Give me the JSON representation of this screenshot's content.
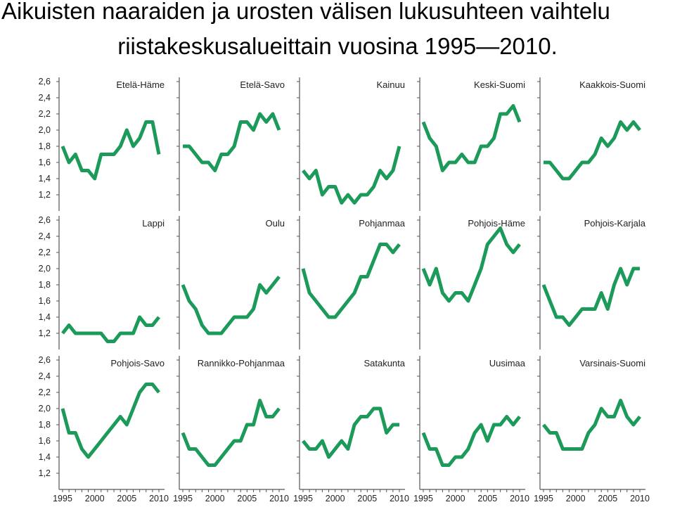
{
  "title_line1": "Aikuisten naaraiden ja urosten välisen lukusuhteen vaihtelu",
  "title_line2": "riistakeskusalueittain vuosina 1995—2010.",
  "colors": {
    "line": "#1b9a5a",
    "axis": "#555555"
  },
  "chart_data": {
    "type": "line",
    "x": [
      1995,
      1996,
      1997,
      1998,
      1999,
      2000,
      2001,
      2002,
      2003,
      2004,
      2005,
      2006,
      2007,
      2008,
      2009,
      2010
    ],
    "x_ticks": [
      "1995",
      "2000",
      "2005",
      "2010"
    ],
    "y_ticks": [
      "2,6",
      "2,4",
      "2,2",
      "2,0",
      "1,8",
      "1,6",
      "1,4",
      "1,2"
    ],
    "ylim": [
      1.1,
      2.7
    ],
    "xlim": [
      1995,
      2010
    ],
    "grid": false,
    "panels": [
      {
        "name": "Etelä-Häme",
        "values": [
          1.8,
          1.6,
          1.7,
          1.5,
          1.5,
          1.4,
          1.7,
          1.7,
          1.7,
          1.8,
          2.0,
          1.8,
          1.9,
          2.1,
          2.1,
          1.7
        ]
      },
      {
        "name": "Etelä-Savo",
        "values": [
          1.8,
          1.8,
          1.7,
          1.6,
          1.6,
          1.5,
          1.7,
          1.7,
          1.8,
          2.1,
          2.1,
          2.0,
          2.2,
          2.1,
          2.2,
          2.0
        ]
      },
      {
        "name": "Kainuu",
        "values": [
          1.5,
          1.4,
          1.5,
          1.2,
          1.3,
          1.3,
          1.1,
          1.2,
          1.1,
          1.2,
          1.2,
          1.3,
          1.5,
          1.4,
          1.5,
          1.8
        ]
      },
      {
        "name": "Keski-Suomi",
        "values": [
          2.1,
          1.9,
          1.8,
          1.5,
          1.6,
          1.6,
          1.7,
          1.6,
          1.6,
          1.8,
          1.8,
          1.9,
          2.2,
          2.2,
          2.3,
          2.1
        ]
      },
      {
        "name": "Kaakkois-Suomi",
        "values": [
          1.6,
          1.6,
          1.5,
          1.4,
          1.4,
          1.5,
          1.6,
          1.6,
          1.7,
          1.9,
          1.8,
          1.9,
          2.1,
          2.0,
          2.1,
          2.0
        ]
      },
      {
        "name": "Lappi",
        "values": [
          1.2,
          1.3,
          1.2,
          1.2,
          1.2,
          1.2,
          1.2,
          1.1,
          1.1,
          1.2,
          1.2,
          1.2,
          1.4,
          1.3,
          1.3,
          1.4
        ]
      },
      {
        "name": "Oulu",
        "values": [
          1.8,
          1.6,
          1.5,
          1.3,
          1.2,
          1.2,
          1.2,
          1.3,
          1.4,
          1.4,
          1.4,
          1.5,
          1.8,
          1.7,
          1.8,
          1.9
        ]
      },
      {
        "name": "Pohjanmaa",
        "values": [
          2.0,
          1.7,
          1.6,
          1.5,
          1.4,
          1.4,
          1.5,
          1.6,
          1.7,
          1.9,
          1.9,
          2.1,
          2.3,
          2.3,
          2.2,
          2.3
        ]
      },
      {
        "name": "Pohjois-Häme",
        "values": [
          2.0,
          1.8,
          2.0,
          1.7,
          1.6,
          1.7,
          1.7,
          1.6,
          1.8,
          2.0,
          2.3,
          2.4,
          2.5,
          2.3,
          2.2,
          2.3
        ]
      },
      {
        "name": "Pohjois-Karjala",
        "values": [
          1.8,
          1.6,
          1.4,
          1.4,
          1.3,
          1.4,
          1.5,
          1.5,
          1.5,
          1.7,
          1.5,
          1.8,
          2.0,
          1.8,
          2.0,
          2.0
        ]
      },
      {
        "name": "Pohjois-Savo",
        "values": [
          2.0,
          1.7,
          1.7,
          1.5,
          1.4,
          1.5,
          1.6,
          1.7,
          1.8,
          1.9,
          1.8,
          2.0,
          2.2,
          2.3,
          2.3,
          2.2
        ]
      },
      {
        "name": "Rannikko-Pohjanmaa",
        "values": [
          1.7,
          1.5,
          1.5,
          1.4,
          1.3,
          1.3,
          1.4,
          1.5,
          1.6,
          1.6,
          1.8,
          1.8,
          2.1,
          1.9,
          1.9,
          2.0
        ]
      },
      {
        "name": "Satakunta",
        "values": [
          1.6,
          1.5,
          1.5,
          1.6,
          1.4,
          1.5,
          1.6,
          1.5,
          1.8,
          1.9,
          1.9,
          2.0,
          2.0,
          1.7,
          1.8,
          1.8
        ]
      },
      {
        "name": "Uusimaa",
        "values": [
          1.7,
          1.5,
          1.5,
          1.3,
          1.3,
          1.4,
          1.4,
          1.5,
          1.7,
          1.8,
          1.6,
          1.8,
          1.8,
          1.9,
          1.8,
          1.9
        ]
      },
      {
        "name": "Varsinais-Suomi",
        "values": [
          1.8,
          1.7,
          1.7,
          1.5,
          1.5,
          1.5,
          1.5,
          1.7,
          1.8,
          2.0,
          1.9,
          1.9,
          2.1,
          1.9,
          1.8,
          1.9
        ]
      }
    ]
  }
}
